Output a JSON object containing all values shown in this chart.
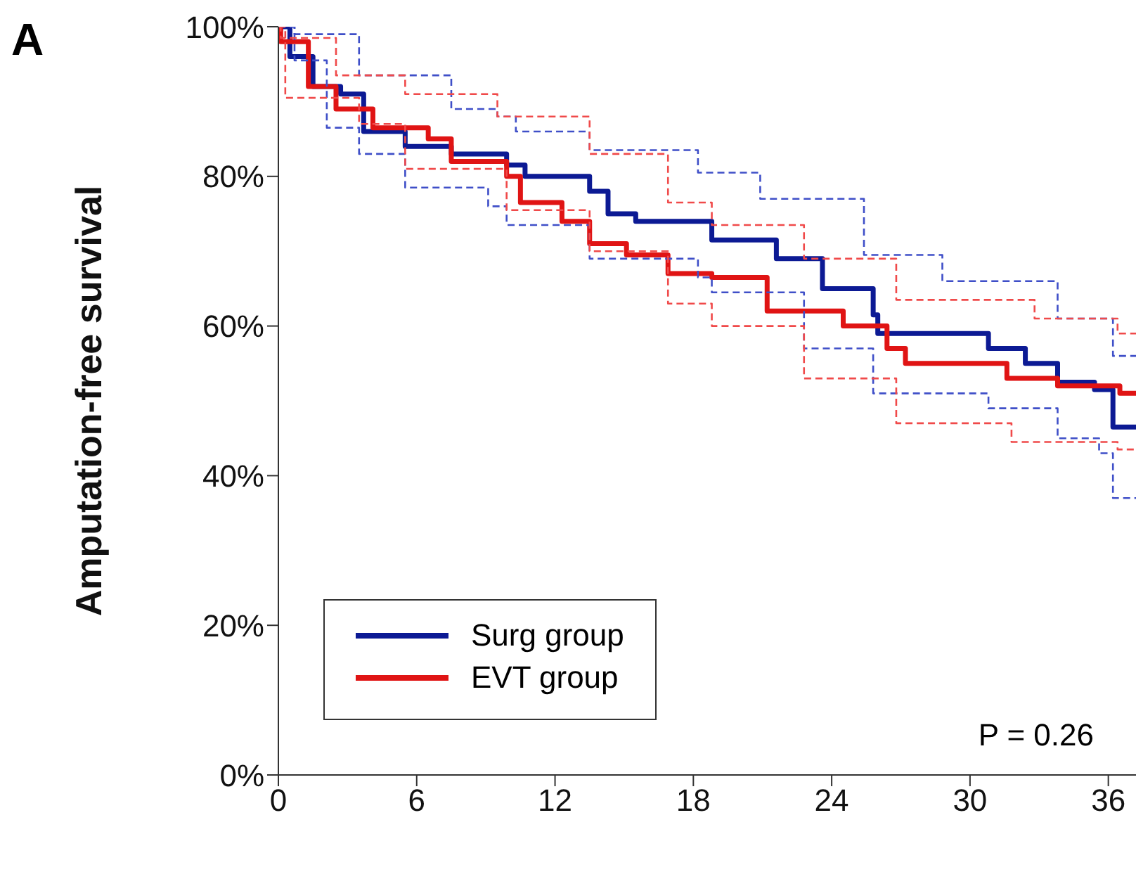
{
  "chart_data": {
    "type": "step",
    "ylabel": "Amputation-free survival",
    "annotations": [
      "A",
      "P = 0.26"
    ],
    "xlim": [
      0,
      37.2
    ],
    "xticks": [
      0,
      6,
      12,
      18,
      24,
      30,
      36
    ],
    "ylim": [
      0,
      100
    ],
    "yticks": [
      {
        "value": 0,
        "label": "0%"
      },
      {
        "value": 20,
        "label": "20%"
      },
      {
        "value": 40,
        "label": "40%"
      },
      {
        "value": 60,
        "label": "60%"
      },
      {
        "value": 80,
        "label": "80%"
      },
      {
        "value": 100,
        "label": "100%"
      }
    ],
    "legend": "bottom left",
    "series": [
      {
        "name": "Surg group",
        "color": "#0c1a94",
        "line_style": "solid",
        "x": [
          0,
          0.5,
          1.5,
          2.7,
          3.7,
          5.5,
          7.5,
          9.9,
          10.7,
          13.5,
          14.3,
          15.5,
          18.4,
          18.8,
          21.6,
          23.6,
          25.8,
          26,
          30.8,
          32.4,
          33.8,
          35.4,
          36.2,
          37.2
        ],
        "values": [
          100,
          96,
          92,
          91,
          86,
          84,
          83,
          81.5,
          80,
          78,
          75,
          74,
          74,
          71.5,
          69,
          65,
          61.5,
          59,
          57,
          55,
          52.5,
          51.5,
          46.5,
          46.5
        ]
      },
      {
        "name": "EVT group",
        "color": "#e01414",
        "line_style": "solid",
        "x": [
          0,
          0.1,
          1.3,
          2.5,
          4.1,
          6.5,
          7.5,
          9.9,
          10.5,
          12.3,
          13.5,
          15.1,
          16.9,
          18.8,
          21.2,
          24.5,
          26.4,
          27.2,
          31.6,
          33.8,
          36.5,
          37.2
        ],
        "values": [
          100,
          98,
          92,
          89,
          86.5,
          85,
          82,
          80,
          76.5,
          74,
          71,
          69.5,
          67,
          66.5,
          62,
          60,
          57,
          55,
          53,
          52,
          51,
          51
        ]
      },
      {
        "color": "#3f4fc8",
        "line_style": "dashed",
        "x": [
          0,
          0.7,
          3.5,
          7.5,
          9.5,
          10.3,
          13.5,
          18.2,
          20.9,
          25.4,
          28.8,
          33.8,
          36.2,
          37.2
        ],
        "values": [
          100,
          99,
          93.5,
          89,
          88,
          86,
          83.5,
          80.5,
          77,
          69.5,
          66,
          61,
          56,
          56
        ]
      },
      {
        "color": "#3f4fc8",
        "line_style": "dashed",
        "x": [
          0,
          0.7,
          2.1,
          3.5,
          5.5,
          9.1,
          9.9,
          13.5,
          18.2,
          18.8,
          22.8,
          25.8,
          30.8,
          33.8,
          35.6,
          36.2,
          37.2
        ],
        "values": [
          100,
          95.5,
          86.5,
          83,
          78.5,
          76,
          73.5,
          69,
          66.5,
          64.5,
          57,
          51,
          49,
          45,
          43,
          37,
          37
        ]
      },
      {
        "color": "#f04a4a",
        "line_style": "dashed",
        "x": [
          0,
          0.1,
          2.5,
          5.5,
          9.5,
          13.5,
          16.9,
          18.8,
          22.8,
          26.8,
          32.8,
          36.4,
          37.2
        ],
        "values": [
          100,
          98.5,
          93.5,
          91,
          88,
          83,
          76.5,
          73.5,
          69,
          63.5,
          61,
          59,
          59
        ]
      },
      {
        "color": "#f04a4a",
        "line_style": "dashed",
        "x": [
          0,
          0.3,
          3.5,
          5.5,
          9.9,
          13.5,
          16.9,
          18.8,
          22.8,
          26.8,
          31.8,
          36.4,
          37.2
        ],
        "values": [
          100,
          90.5,
          87,
          81,
          75.5,
          70,
          63,
          60,
          53,
          47,
          44.5,
          43.5,
          43.5
        ]
      }
    ]
  }
}
